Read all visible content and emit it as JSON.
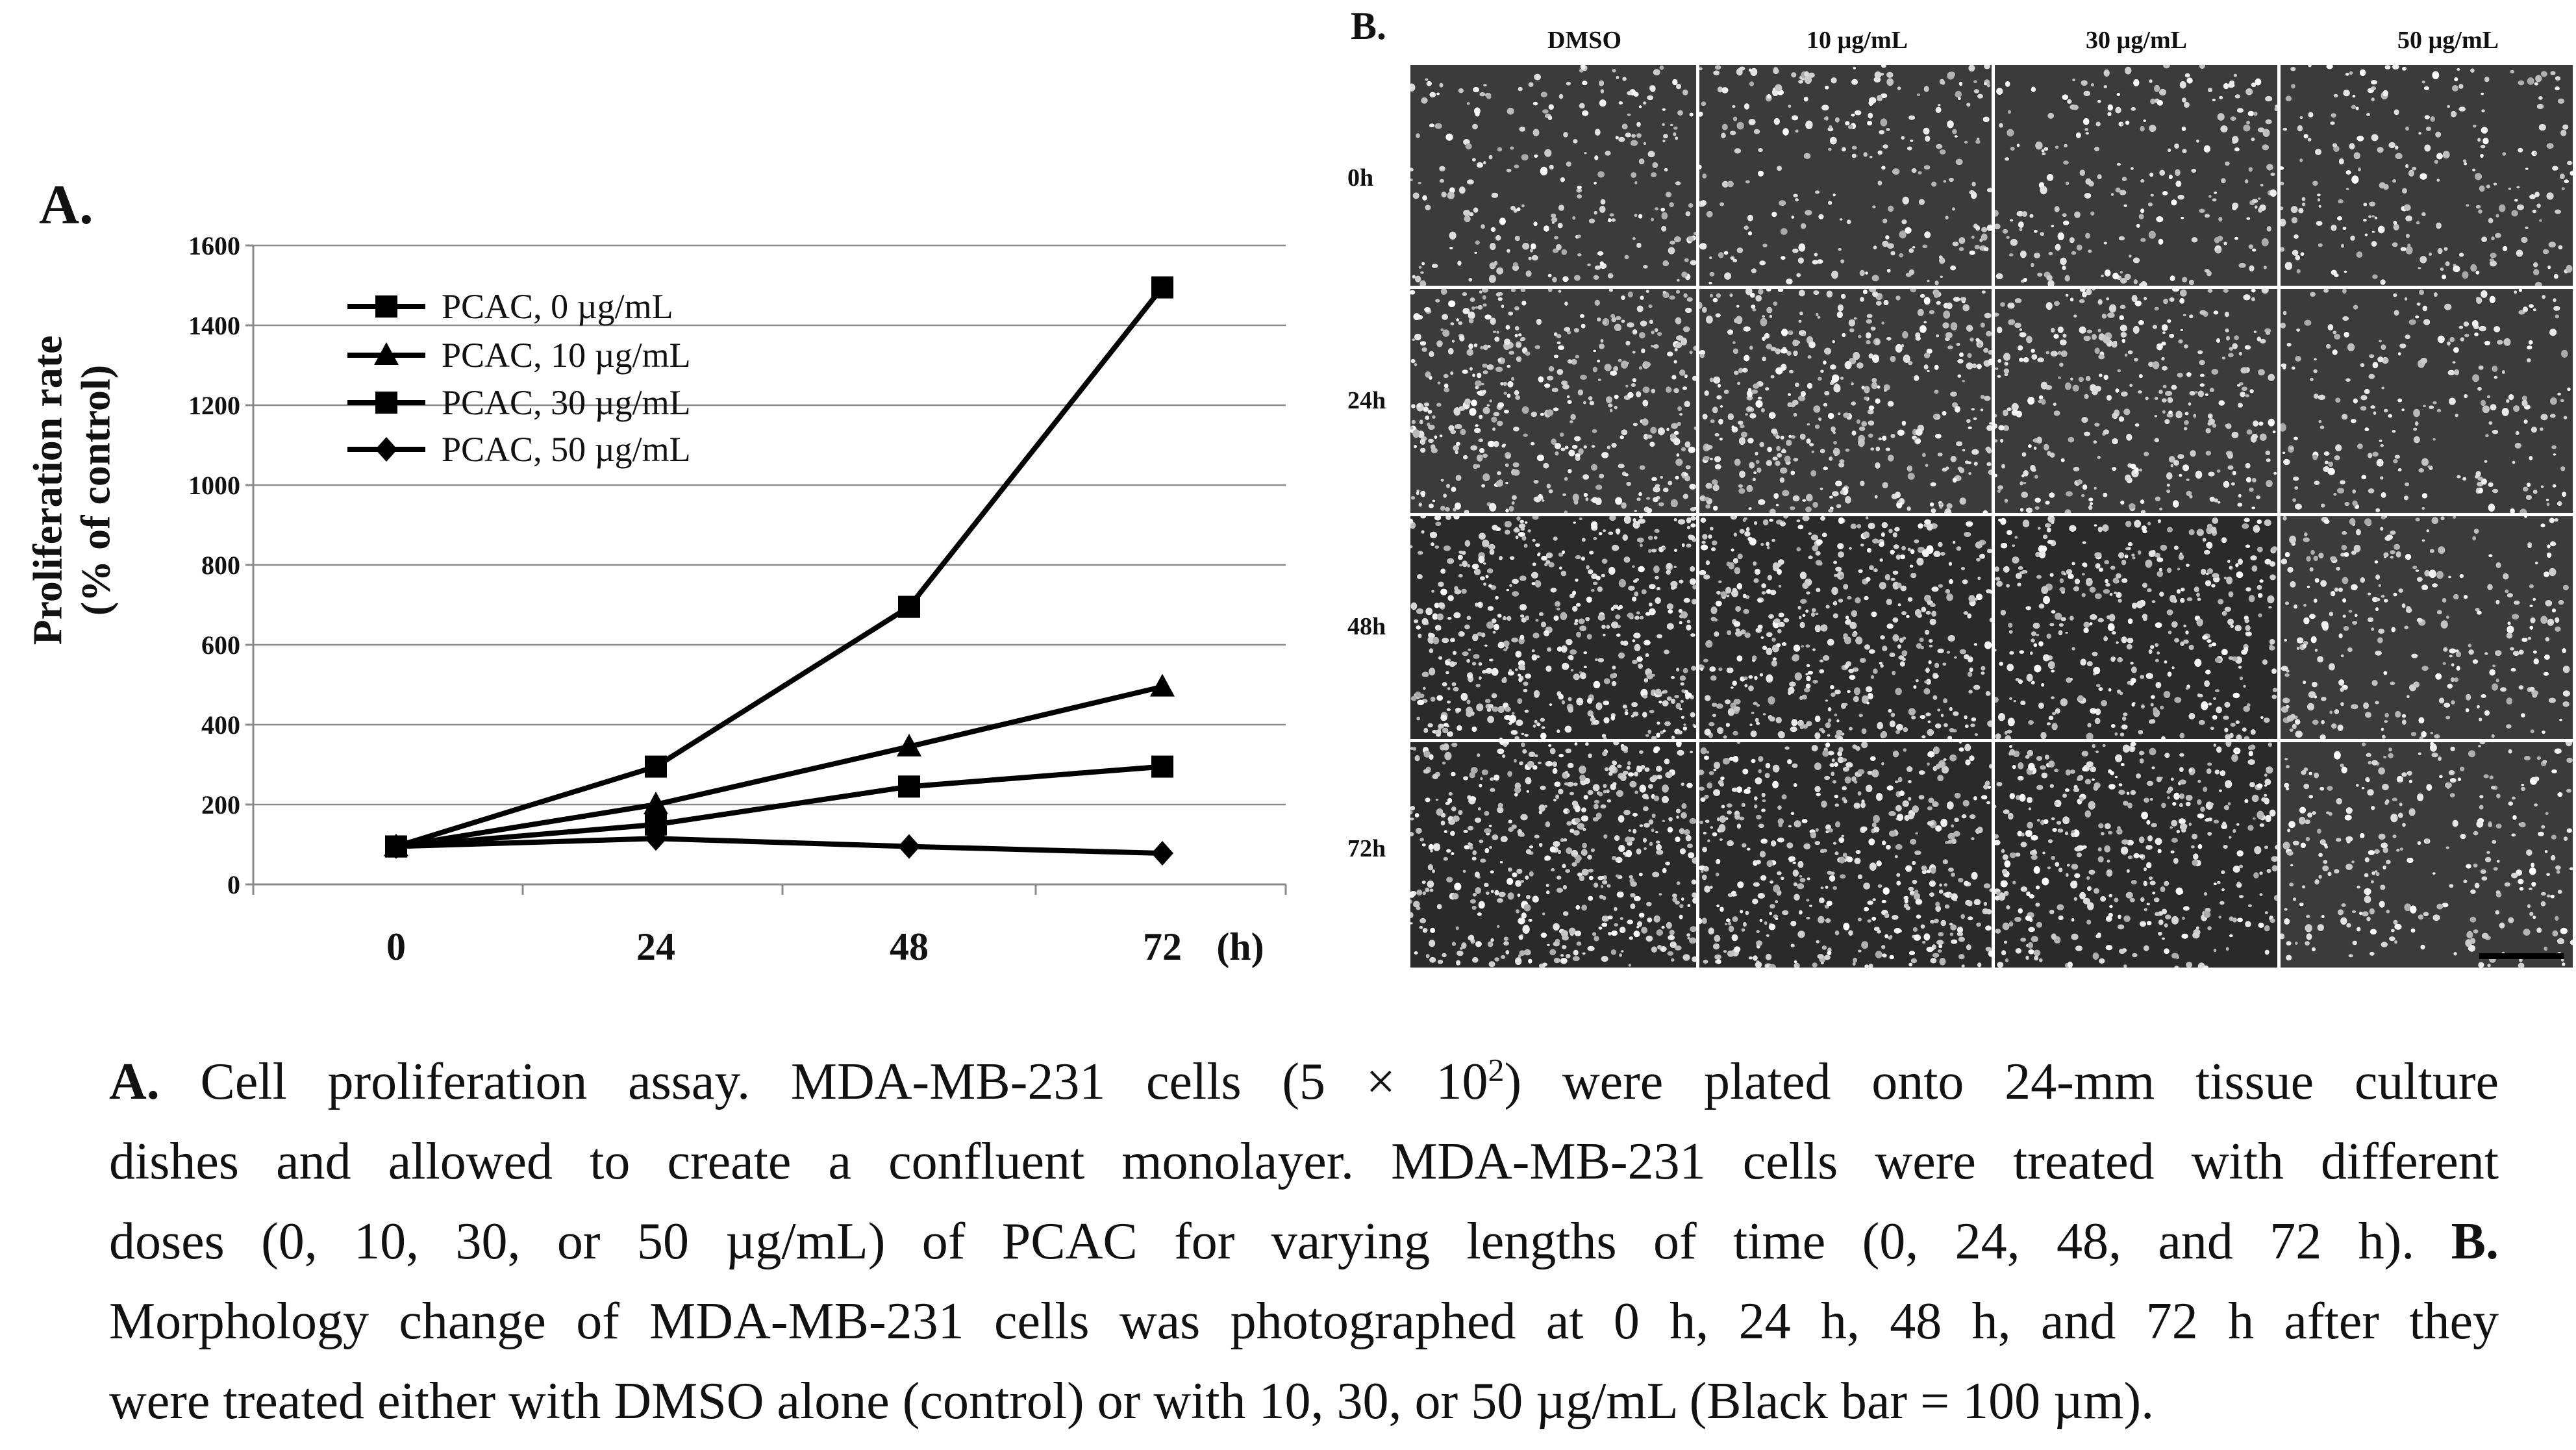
{
  "panel_a": {
    "label": "A."
  },
  "panel_b": {
    "label": "B.",
    "columns": [
      "DMSO",
      "10 µg/mL",
      "30 µg/mL",
      "50 µg/mL"
    ],
    "rows": [
      "0h",
      "24h",
      "48h",
      "72h"
    ],
    "density": [
      [
        0.45,
        0.45,
        0.45,
        0.45
      ],
      [
        0.85,
        0.8,
        0.65,
        0.45
      ],
      [
        1.0,
        0.9,
        0.75,
        0.55
      ],
      [
        1.0,
        0.9,
        0.8,
        0.55
      ]
    ]
  },
  "chart_data": {
    "type": "line",
    "ylabel_lines": [
      "Proliferation rate",
      "(% of control)"
    ],
    "x_ticks": [
      "0",
      "24",
      "48",
      "72"
    ],
    "x_unit": "(h)",
    "x": [
      0,
      24,
      48,
      72
    ],
    "ylim": [
      0,
      1600
    ],
    "yticks": [
      0,
      200,
      400,
      600,
      800,
      1000,
      1200,
      1400,
      1600
    ],
    "grid": true,
    "legend_position": "top-left",
    "series": [
      {
        "name": "PCAC, 0 µg/mL",
        "marker": "square",
        "values": [
          95,
          295,
          695,
          1495
        ]
      },
      {
        "name": "PCAC, 10 µg/mL",
        "marker": "triangle",
        "values": [
          95,
          200,
          345,
          495
        ]
      },
      {
        "name": "PCAC, 30 µg/mL",
        "marker": "square",
        "values": [
          95,
          150,
          245,
          295
        ]
      },
      {
        "name": "PCAC, 50 µg/mL",
        "marker": "diamond",
        "values": [
          95,
          115,
          95,
          78
        ]
      }
    ]
  },
  "caption": {
    "lines": [
      [
        {
          "b": "A."
        },
        {
          "t": " Cell proliferation assay. MDA-MB-231 cells (5 × 10"
        },
        {
          "sup": "2"
        },
        {
          "t": ") were plated onto 24-mm tissue culture"
        }
      ],
      [
        {
          "t": "dishes and allowed to create a confluent monolayer. MDA-MB-231 cells were treated with different"
        }
      ],
      [
        {
          "t": "doses (0, 10, 30, or 50 µg/mL) of PCAC for varying lengths of time (0, 24, 48, and 72 h). "
        },
        {
          "b": "B."
        }
      ],
      [
        {
          "t": "Morphology change of MDA-MB-231 cells was photographed at 0 h, 24 h, 48 h, and 72 h after they"
        }
      ],
      [
        {
          "t": "were treated either with DMSO alone (control) or with 10, 30, or 50 µg/mL (Black bar = 100 µm)."
        }
      ]
    ]
  }
}
